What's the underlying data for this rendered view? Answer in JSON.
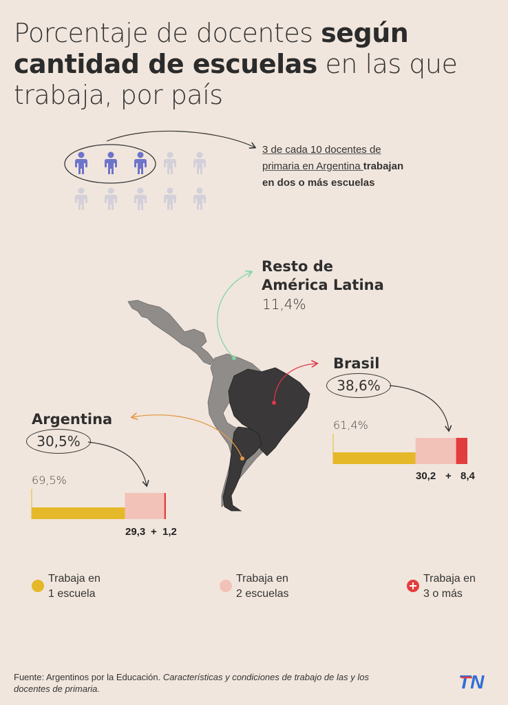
{
  "title": {
    "part1": "Porcentaje de docentes ",
    "bold": "según cantidad de escuelas",
    "part2": " en las que trabaja, por país"
  },
  "annotation": {
    "line1": "3 de cada 10 docentes de",
    "line2": "primaria en Argentina ",
    "line2_bold": "trabajan",
    "line3_bold": "en dos o más escuelas"
  },
  "icons": {
    "total": 10,
    "highlighted": 3,
    "highlight_color": "#6e74c9",
    "dim_color": "#d3d0da"
  },
  "colors": {
    "one_school": "#e5b829",
    "two_schools": "#f2c2b8",
    "three_plus": "#e23d3d",
    "land_dark": "#3a3838",
    "land_grey": "#8f8c8a",
    "resto_arrow": "#7fd6a3",
    "brasil_arrow": "#e0354a",
    "argentina_arrow": "#e39a4a"
  },
  "regions": {
    "resto": {
      "name_line1": "Resto de",
      "name_line2": "América Latina",
      "value": "11,4%"
    },
    "brasil": {
      "name": "Brasil",
      "value": "38,6%"
    },
    "argentina": {
      "name": "Argentina",
      "value": "30,5%"
    }
  },
  "chart_data": [
    {
      "type": "bar",
      "country": "Argentina",
      "categories": [
        "Trabaja en 1 escuela",
        "Trabaja en 2 escuelas",
        "Trabaja en 3 o más"
      ],
      "values": [
        69.5,
        29.3,
        1.2
      ],
      "labels": {
        "one": "69,5%",
        "two": "29,3",
        "plus": "+",
        "three": "1,2"
      }
    },
    {
      "type": "bar",
      "country": "Brasil",
      "categories": [
        "Trabaja en 1 escuela",
        "Trabaja en 2 escuelas",
        "Trabaja en 3 o más"
      ],
      "values": [
        61.4,
        30.2,
        8.4
      ],
      "labels": {
        "one": "61,4%",
        "two": "30,2",
        "plus": "+",
        "three": "8,4"
      }
    }
  ],
  "legend": [
    {
      "line1": "Trabaja en",
      "line2": "1 escuela"
    },
    {
      "line1": "Trabaja en",
      "line2": "2 escuelas"
    },
    {
      "line1": "Trabaja en",
      "line2": "3 o más"
    }
  ],
  "footer": {
    "source": "Fuente: Argentinos por la Educación. ",
    "source_italic": "Características y condiciones de trabajo de las y los docentes de primaria."
  },
  "logo": {
    "text": "TN",
    "color": "#2f6fd8",
    "accent": "#e23d3d"
  }
}
